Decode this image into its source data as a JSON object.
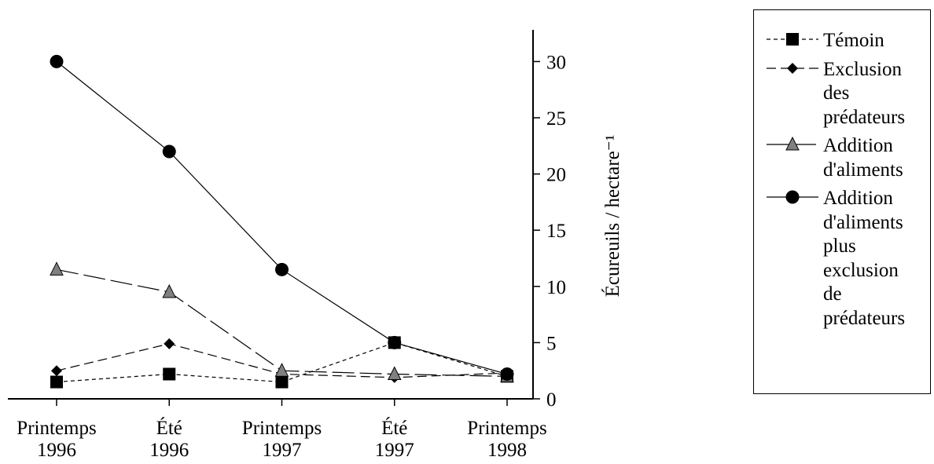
{
  "chart_data": {
    "type": "line",
    "categories": [
      [
        "Printemps",
        "1996"
      ],
      [
        "Été",
        "1996"
      ],
      [
        "Printemps",
        "1997"
      ],
      [
        "Été",
        "1997"
      ],
      [
        "Printemps",
        "1998"
      ]
    ],
    "ylabel": "Écureuils / hectare⁻¹",
    "ylim": [
      0,
      33
    ],
    "yticks": [
      0,
      5,
      10,
      15,
      20,
      25,
      30
    ],
    "grid": false,
    "legend_position": "top-right",
    "series": [
      {
        "name": "Témoin",
        "marker": "square",
        "dash": "short-dash",
        "color": "#000000",
        "values": [
          1.5,
          2.2,
          1.5,
          5.0,
          2.0
        ]
      },
      {
        "name": "Exclusion des prédateurs",
        "marker": "diamond",
        "dash": "long-dash",
        "color": "#000000",
        "values": [
          2.5,
          4.9,
          2.2,
          1.9,
          2.3
        ]
      },
      {
        "name": "Addition d'aliments",
        "marker": "triangle",
        "dash": "long-short-dash",
        "color": "#808080",
        "values": [
          11.5,
          9.5,
          2.5,
          2.2,
          2.0
        ]
      },
      {
        "name": "Addition d'aliments plus exclusion de prédateurs",
        "marker": "circle",
        "dash": "solid",
        "color": "#000000",
        "values": [
          30.0,
          22.0,
          11.5,
          5.0,
          2.2
        ]
      }
    ]
  },
  "legend": {
    "items": [
      {
        "lines": [
          "Témoin"
        ]
      },
      {
        "lines": [
          "Exclusion",
          "des",
          "prédateurs"
        ]
      },
      {
        "lines": [
          "Addition",
          "d'aliments"
        ]
      },
      {
        "lines": [
          "Addition",
          "d'aliments",
          "plus",
          "exclusion",
          "de",
          "prédateurs"
        ]
      }
    ]
  }
}
